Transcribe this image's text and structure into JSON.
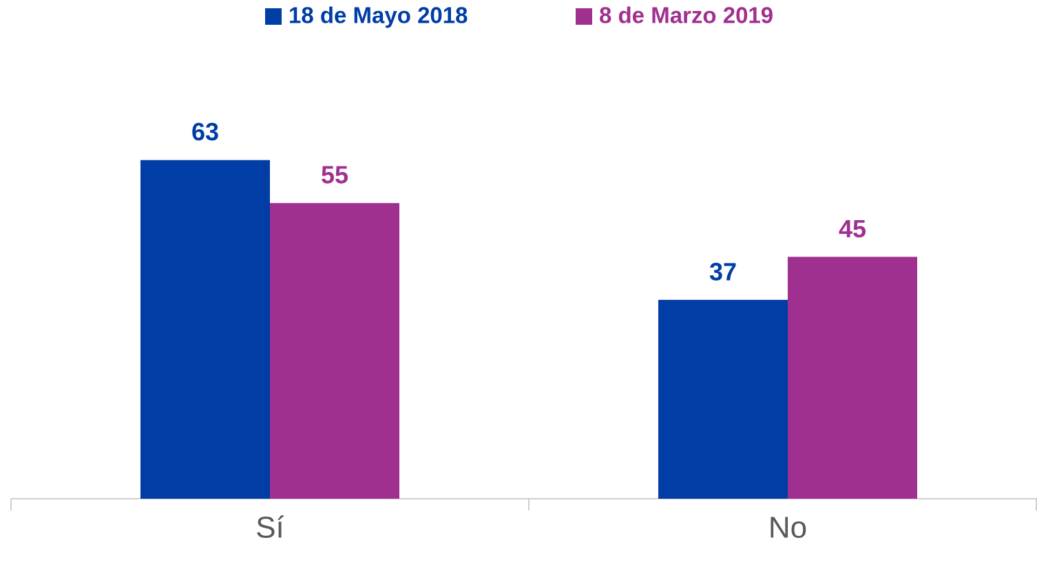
{
  "chart_data": {
    "type": "bar",
    "categories": [
      "Sí",
      "No"
    ],
    "series": [
      {
        "name": "18 de Mayo 2018",
        "color": "#003DA5",
        "values": [
          63,
          37
        ]
      },
      {
        "name": "8 de Marzo 2019",
        "color": "#A0308F",
        "values": [
          55,
          45
        ]
      }
    ],
    "ylim": [
      0,
      70
    ],
    "legend": "top"
  }
}
